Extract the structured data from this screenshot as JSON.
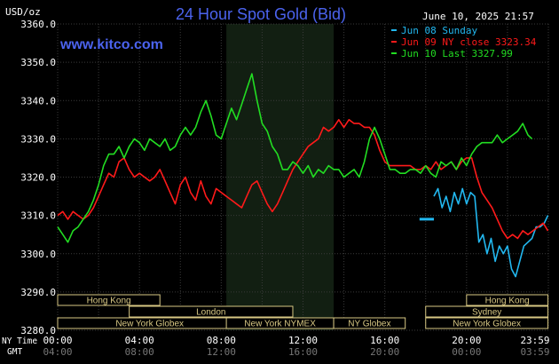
{
  "header": {
    "title": "24 Hour Spot Gold (Bid)",
    "unit": "USD/oz",
    "date": "June 10, 2025 21:57",
    "website": "www.kitco.com"
  },
  "legend": [
    {
      "label": "Jun 08 Sunday",
      "color": "#22b8f0"
    },
    {
      "label": "Jun 09 NY close 3323.34",
      "color": "#ff1a1a"
    },
    {
      "label": "Jun 10 Last 3327.99",
      "color": "#22dd22"
    }
  ],
  "sessions": [
    {
      "label": "Hong Kong"
    },
    {
      "label": "London"
    },
    {
      "label": "New York Globex"
    },
    {
      "label": "New York NYMEX"
    },
    {
      "label": "NY Globex"
    },
    {
      "label": "Hong Kong"
    },
    {
      "label": "Sydney"
    },
    {
      "label": "New York Globex"
    }
  ],
  "axis_rows": {
    "ny_time_label": "NY Time",
    "gmt_label": "GMT",
    "ny_ticks": [
      "00:00",
      "04:00",
      "08:00",
      "12:00",
      "16:00",
      "20:00",
      "23:59"
    ],
    "gmt_ticks": [
      "04:00",
      "08:00",
      "12:00",
      "16:00",
      "20:00",
      "00:00",
      "03:59"
    ]
  },
  "chart_data": {
    "type": "line",
    "title": "24 Hour Spot Gold (Bid)",
    "ylabel": "USD/oz",
    "xlabel": "NY Time",
    "ylim": [
      3280,
      3360
    ],
    "xlim": [
      0,
      24
    ],
    "y_ticks": [
      "3360.0",
      "3350.0",
      "3340.0",
      "3330.0",
      "3320.0",
      "3310.0",
      "3300.0",
      "3290.0",
      "3280.0"
    ],
    "grid": true,
    "legend_position": "top-right",
    "shaded_region_hours": [
      8.25,
      13.5
    ],
    "series": [
      {
        "name": "Jun 08 Sunday",
        "color": "#22b8f0",
        "x": [
          17.7,
          18.4
        ],
        "y": [
          3309,
          3309
        ]
      },
      {
        "name": "Jun 08 Sunday",
        "color": "#22b8f0",
        "x": [
          18.4,
          18.6,
          18.8,
          19.0,
          19.2,
          19.4,
          19.6,
          19.8,
          20.0,
          20.2,
          20.4,
          20.6,
          20.8,
          21.0,
          21.2,
          21.4,
          21.6,
          21.8,
          22.0,
          22.2,
          22.4,
          22.6,
          22.8,
          23.0,
          23.2,
          23.4,
          23.6,
          23.8,
          23.98
        ],
        "y": [
          3315,
          3317,
          3312,
          3315,
          3311,
          3316,
          3313,
          3317,
          3313,
          3316,
          3315,
          3303,
          3305,
          3300,
          3304,
          3298,
          3302,
          3300,
          3302,
          3296,
          3294,
          3298,
          3302,
          3303,
          3304,
          3307,
          3307,
          3308,
          3310
        ]
      },
      {
        "name": "Jun 09 NY close 3323.34",
        "color": "#ff1a1a",
        "x": [
          0.0,
          0.25,
          0.5,
          0.75,
          1.0,
          1.25,
          1.5,
          1.75,
          2.0,
          2.25,
          2.5,
          2.75,
          3.0,
          3.25,
          3.5,
          3.75,
          4.0,
          4.25,
          4.5,
          4.75,
          5.0,
          5.25,
          5.5,
          5.75,
          6.0,
          6.25,
          6.5,
          6.75,
          7.0,
          7.25,
          7.5,
          7.75,
          8.0,
          8.25,
          8.5,
          8.75,
          9.0,
          9.25,
          9.5,
          9.75,
          10.0,
          10.25,
          10.5,
          10.75,
          11.0,
          11.25,
          11.5,
          11.75,
          12.0,
          12.25,
          12.5,
          12.75,
          13.0,
          13.25,
          13.5,
          13.75,
          14.0,
          14.25,
          14.5,
          14.75,
          15.0,
          15.25,
          15.5,
          15.75,
          16.0,
          16.25,
          16.5,
          16.75,
          17.0,
          17.25,
          17.5,
          17.75,
          18.0,
          18.25,
          18.5,
          18.75,
          19.0,
          19.25,
          19.5,
          19.75,
          20.0,
          20.25,
          20.5,
          20.75,
          21.0,
          21.25,
          21.5,
          21.75,
          22.0,
          22.25,
          22.5,
          22.75,
          23.0,
          23.25,
          23.5,
          23.75,
          23.98
        ],
        "y": [
          3310,
          3311,
          3309,
          3311,
          3310,
          3309,
          3310,
          3312,
          3315,
          3318,
          3321,
          3320,
          3324,
          3325,
          3322,
          3320,
          3321,
          3320,
          3319,
          3320,
          3322,
          3319,
          3316,
          3313,
          3318,
          3320,
          3316,
          3314,
          3319,
          3315,
          3313,
          3317,
          3316,
          3315,
          3314,
          3313,
          3312,
          3315,
          3318,
          3319,
          3316,
          3313,
          3311,
          3313,
          3316,
          3319,
          3322,
          3324,
          3326,
          3328,
          3329,
          3330,
          3333,
          3332,
          3333,
          3335,
          3333,
          3335,
          3334,
          3334,
          3333,
          3333,
          3331,
          3327,
          3324,
          3323,
          3323,
          3323,
          3323,
          3323,
          3322,
          3322,
          3323,
          3322,
          3324,
          3322,
          3323,
          3324,
          3322,
          3324,
          3325,
          3325,
          3320,
          3316,
          3314,
          3312,
          3309,
          3306,
          3304,
          3305,
          3304,
          3306,
          3305,
          3306,
          3307,
          3308,
          3306
        ]
      },
      {
        "name": "Jun 10 Last 3327.99",
        "color": "#22dd22",
        "x": [
          0.0,
          0.25,
          0.5,
          0.75,
          1.0,
          1.25,
          1.5,
          1.75,
          2.0,
          2.25,
          2.5,
          2.75,
          3.0,
          3.25,
          3.5,
          3.75,
          4.0,
          4.25,
          4.5,
          4.75,
          5.0,
          5.25,
          5.5,
          5.75,
          6.0,
          6.25,
          6.5,
          6.75,
          7.0,
          7.25,
          7.5,
          7.75,
          8.0,
          8.25,
          8.5,
          8.75,
          9.0,
          9.25,
          9.5,
          9.75,
          10.0,
          10.25,
          10.5,
          10.75,
          11.0,
          11.25,
          11.5,
          11.75,
          12.0,
          12.25,
          12.5,
          12.75,
          13.0,
          13.25,
          13.5,
          13.75,
          14.0,
          14.25,
          14.5,
          14.75,
          15.0,
          15.25,
          15.5,
          15.75,
          16.0,
          16.25,
          16.5,
          16.75,
          17.0,
          17.25,
          17.5,
          17.75,
          18.0,
          18.25,
          18.5,
          18.75,
          19.0,
          19.25,
          19.5,
          19.75,
          20.0,
          20.25,
          20.5,
          20.75,
          21.0,
          21.25,
          21.5,
          21.75,
          22.0,
          22.25,
          22.5,
          22.75,
          23.0,
          23.2
        ],
        "y": [
          3307,
          3305,
          3303,
          3306,
          3307,
          3309,
          3311,
          3314,
          3318,
          3323,
          3326,
          3326,
          3328,
          3325,
          3328,
          3330,
          3329,
          3327,
          3330,
          3329,
          3328,
          3330,
          3327,
          3328,
          3331,
          3333,
          3331,
          3333,
          3337,
          3340,
          3336,
          3331,
          3330,
          3334,
          3338,
          3335,
          3339,
          3343,
          3347,
          3340,
          3334,
          3332,
          3328,
          3326,
          3322,
          3322,
          3324,
          3323,
          3321,
          3323,
          3320,
          3322,
          3321,
          3323,
          3322,
          3322,
          3320,
          3321,
          3322,
          3320,
          3324,
          3330,
          3333,
          3330,
          3326,
          3322,
          3322,
          3321,
          3321,
          3322,
          3322,
          3321,
          3323,
          3321,
          3320,
          3324,
          3323,
          3324,
          3322,
          3325,
          3323,
          3326,
          3328,
          3329,
          3329,
          3329,
          3331,
          3329,
          3330,
          3331,
          3332,
          3334,
          3331,
          3330
        ]
      }
    ]
  }
}
